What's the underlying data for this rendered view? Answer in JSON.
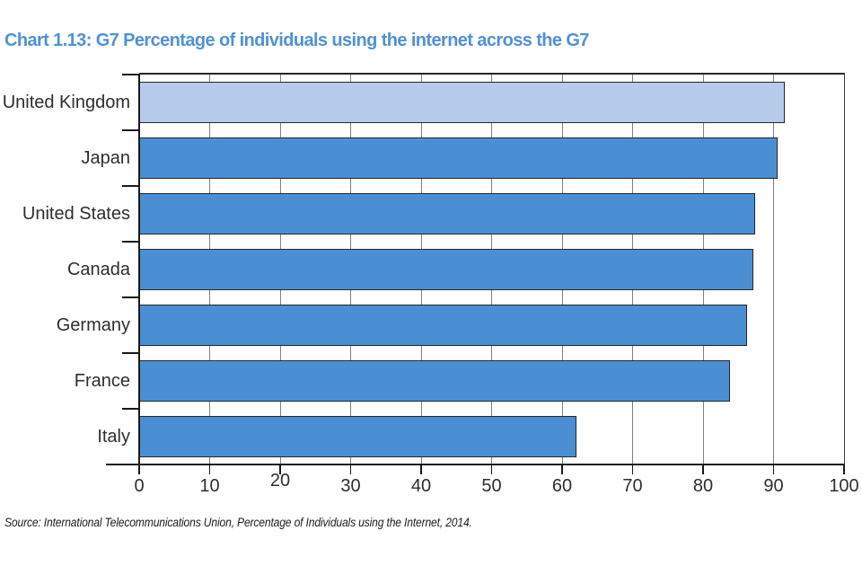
{
  "page": {
    "title": "Chart 1.13: G7 Percentage of individuals using the internet across the G7",
    "source_note": "Source: International Telecommunications Union, Percentage of Individuals using the Internet, 2014."
  },
  "chart_data": {
    "type": "bar",
    "orientation": "horizontal",
    "title": "Chart 1.13: G7 Percentage of individuals using the internet across the G7",
    "categories": [
      "United Kingdom",
      "Japan",
      "United States",
      "Canada",
      "Germany",
      "France",
      "Italy"
    ],
    "values": [
      91.6,
      90.6,
      87.4,
      87.1,
      86.2,
      83.8,
      62.0
    ],
    "highlight_index": 0,
    "xlabel": "",
    "ylabel": "",
    "xlim": [
      0,
      100
    ],
    "x_ticks": [
      0,
      10,
      20,
      30,
      40,
      50,
      60,
      70,
      80,
      90,
      100
    ],
    "x_tick_dy": [
      0,
      0,
      -6,
      0,
      0,
      0,
      0,
      0,
      0,
      0,
      0
    ],
    "grid": true,
    "legend": "none",
    "source": "Source: International Telecommunications Union, Percentage of Individuals using the Internet, 2014.",
    "colors": {
      "title": "#4E92D8",
      "bar_fill": "#4A8FD3",
      "bar_highlight_fill": "#B6CAEA",
      "bar_outline": "#262626",
      "gridline": "#808080",
      "axis": "#1a1a1a",
      "label_text": "#2e2e2e"
    }
  }
}
